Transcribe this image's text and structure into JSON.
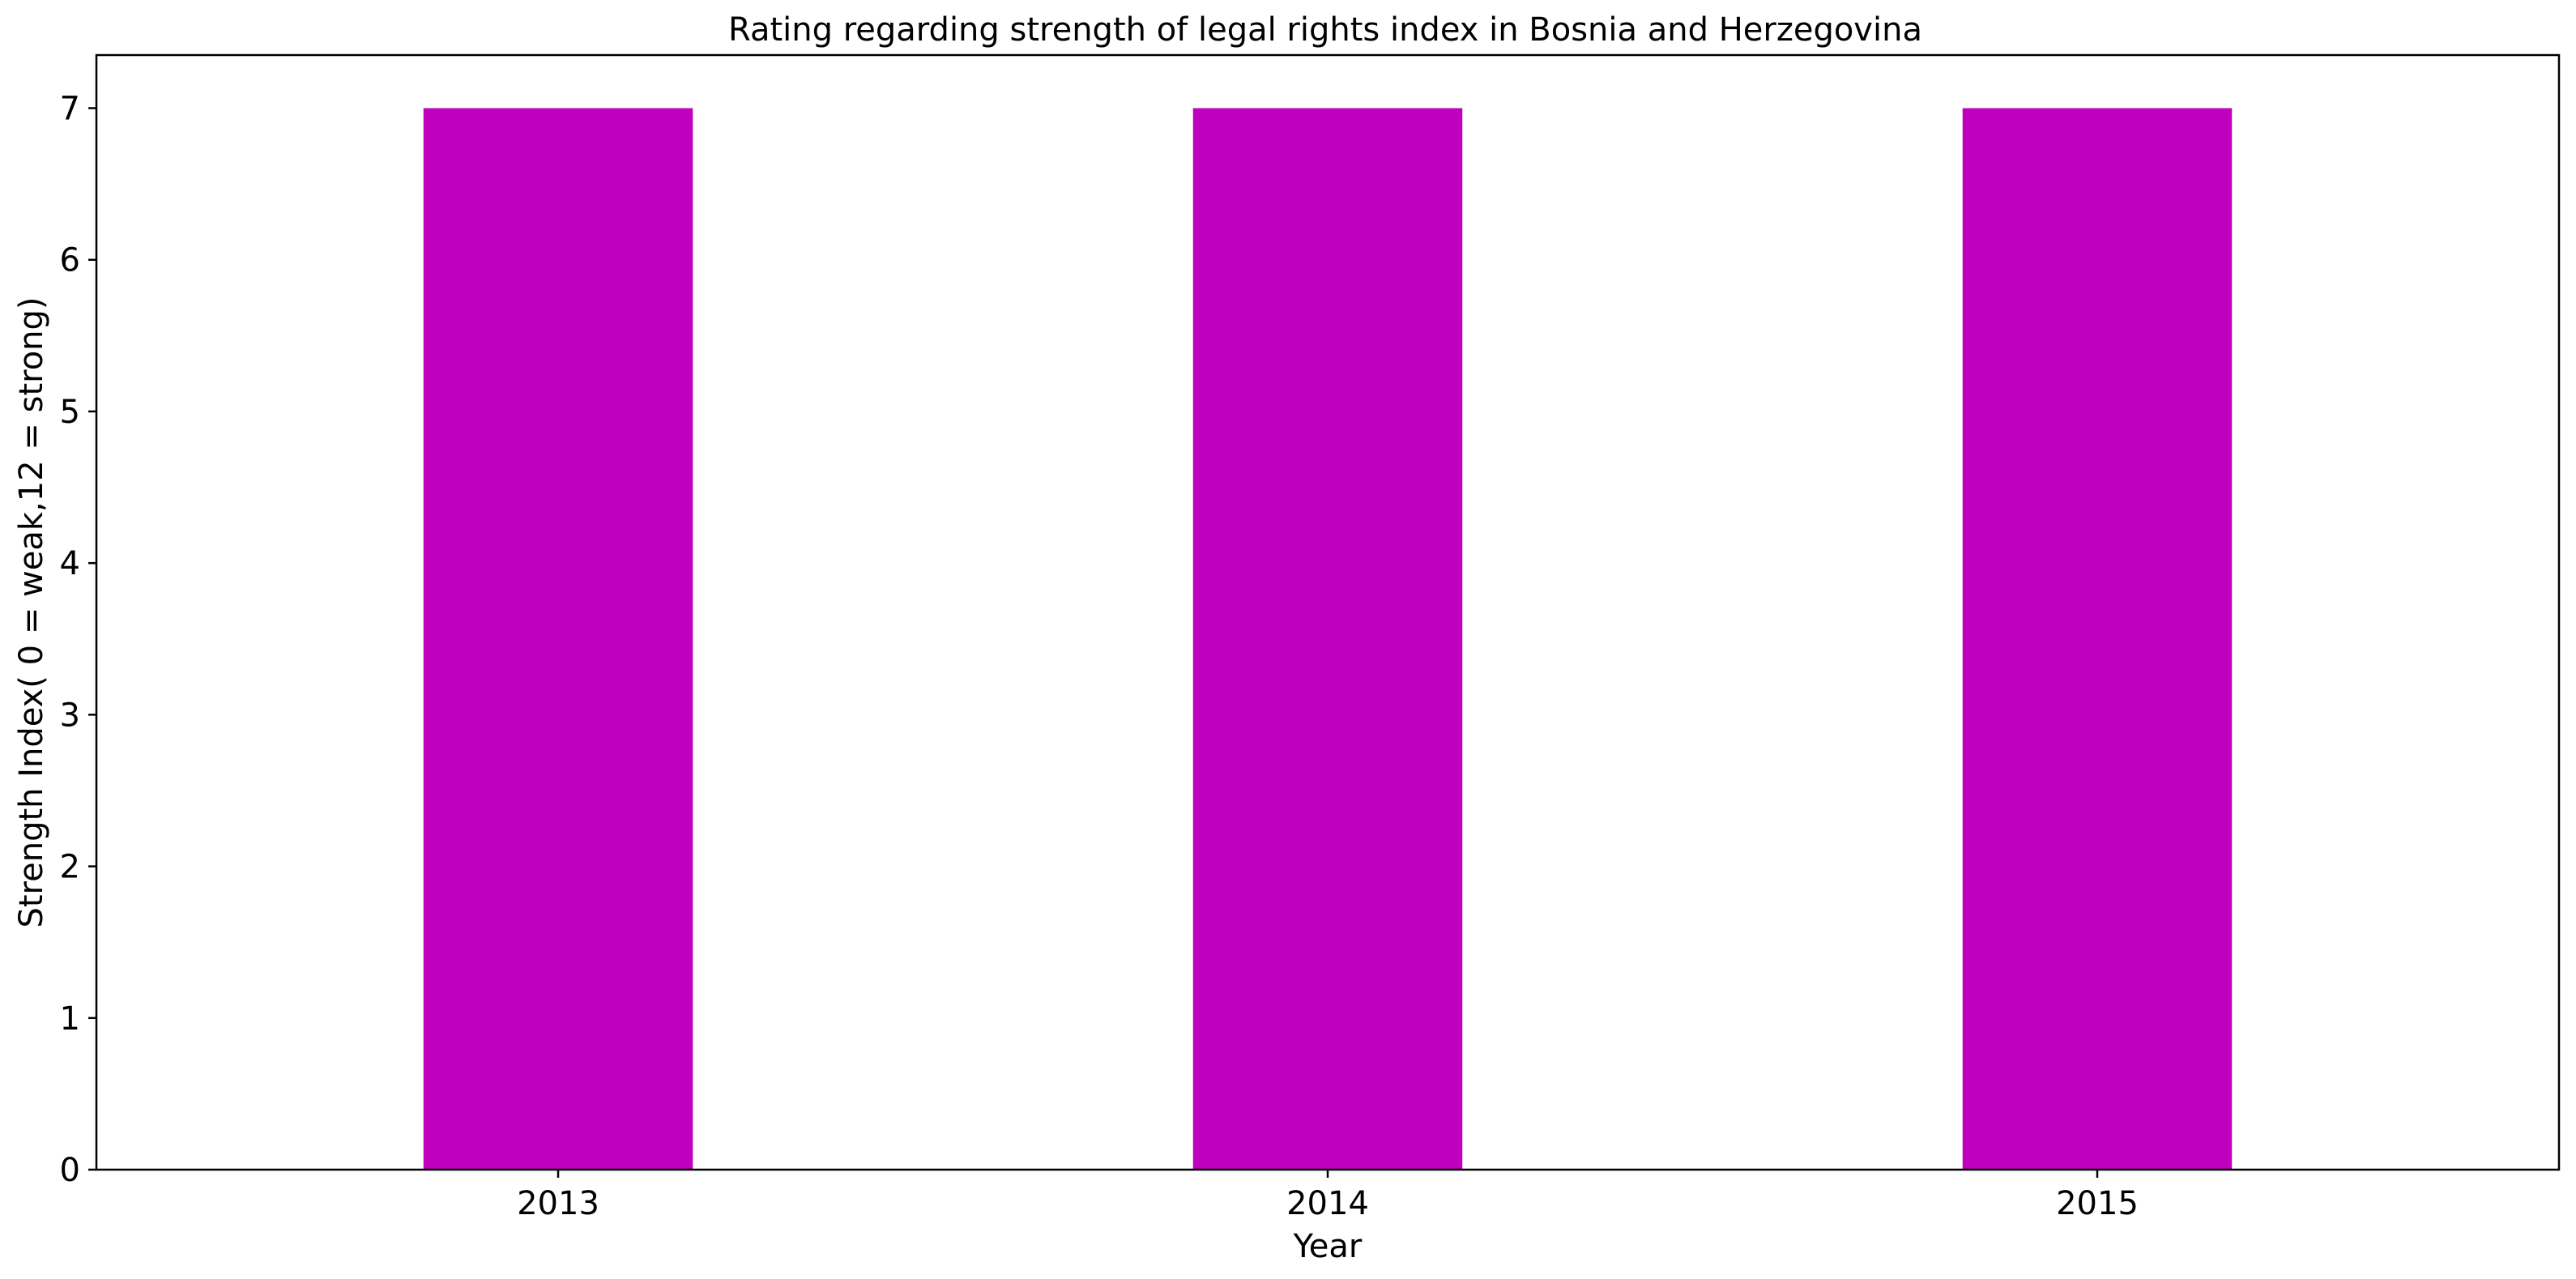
{
  "chart_data": {
    "type": "bar",
    "title": "Rating regarding strength of legal rights index in Bosnia and Herzegovina",
    "xlabel": "Year",
    "ylabel": "Strength Index( 0 = weak,12 = strong)",
    "categories": [
      "2013",
      "2014",
      "2015"
    ],
    "values": [
      7,
      7,
      7
    ],
    "ylim": [
      0,
      7.35
    ],
    "yticks": [
      0,
      1,
      2,
      3,
      4,
      5,
      6,
      7
    ],
    "bar_color": "#bf00bf",
    "grid": false,
    "legend": "none"
  }
}
